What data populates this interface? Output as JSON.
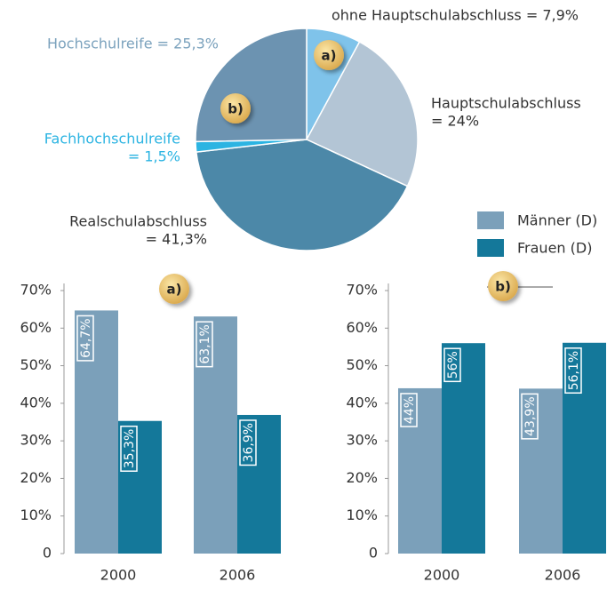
{
  "chart_data": [
    {
      "type": "pie",
      "values": [
        7.9,
        24,
        41.3,
        1.5,
        25.3
      ],
      "labels": [
        [
          "ohne Hauptschulabschluss = 7,9%"
        ],
        [
          "Hauptschulabschluss",
          "= 24%"
        ],
        [
          "Realschulabschluss",
          "= 41,3%"
        ],
        [
          "Fachhochschulreife",
          "= 1,5%"
        ],
        [
          "Hochschulreife = 25,3%"
        ]
      ],
      "colors": [
        "#7fc3ea",
        "#b3c5d5",
        "#4c88a8",
        "#2cb4e2",
        "#6c93b1"
      ],
      "label_colors": [
        "#333333",
        "#333333",
        "#333333",
        "#2cb4e2",
        "#7ba2bd"
      ],
      "annotations": [
        "a)",
        "b)"
      ]
    },
    {
      "type": "bar",
      "title": "a)",
      "categories": [
        "2000",
        "2006"
      ],
      "series": [
        {
          "name": "Männer (D)",
          "color": "#7ba0ba",
          "values": [
            64.7,
            63.1
          ],
          "value_labels": [
            "64,7%",
            "63,1%"
          ]
        },
        {
          "name": "Frauen (D)",
          "color": "#14789a",
          "values": [
            35.3,
            36.9
          ],
          "value_labels": [
            "35,3%",
            "36,9%"
          ]
        }
      ],
      "ylim": [
        0,
        70
      ],
      "yticks": [
        0,
        {
          "value": 10,
          "label": "10%"
        },
        {
          "value": 20,
          "label": "20%"
        },
        {
          "value": 30,
          "label": "30%"
        },
        {
          "value": 40,
          "label": "40%"
        },
        {
          "value": 50,
          "label": "50%"
        },
        {
          "value": 60,
          "label": "60%"
        },
        {
          "value": 70,
          "label": "70%"
        }
      ]
    },
    {
      "type": "bar",
      "title": "b)",
      "categories": [
        "2000",
        "2006"
      ],
      "series": [
        {
          "color": "#7ba0ba",
          "values": [
            44,
            43.9
          ],
          "value_labels": [
            "44%",
            "43,9%"
          ]
        },
        {
          "color": "#14789a",
          "values": [
            56,
            56.1
          ],
          "value_labels": [
            "56%",
            "56,1%"
          ]
        }
      ],
      "ylim": [
        0,
        70
      ],
      "yticks": [
        0,
        {
          "value": 10,
          "label": "10%"
        },
        {
          "value": 20,
          "label": "20%"
        },
        {
          "value": 30,
          "label": "30%"
        },
        {
          "value": 40,
          "label": "40%"
        },
        {
          "value": 50,
          "label": "50%"
        },
        {
          "value": 60,
          "label": "60%"
        },
        {
          "value": 70,
          "label": "70%"
        }
      ]
    }
  ]
}
